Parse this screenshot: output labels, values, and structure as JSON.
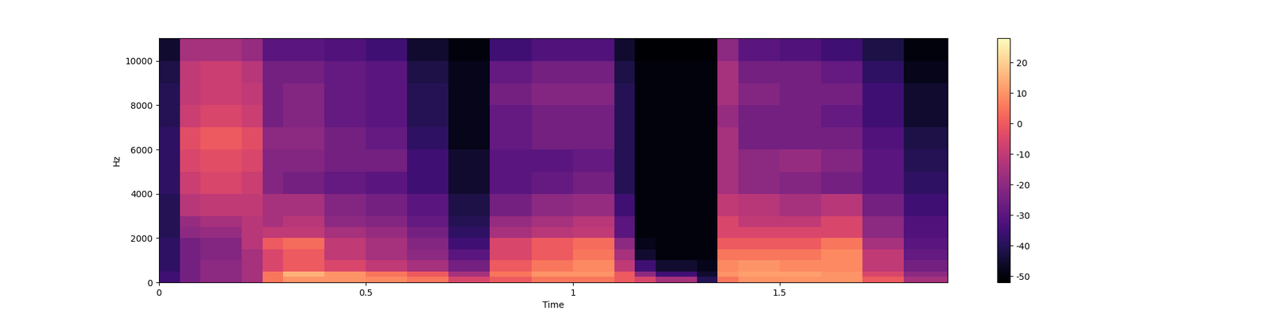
{
  "chart_data": {
    "type": "heatmap",
    "xlabel": "Time",
    "ylabel": "Hz",
    "xlim": [
      0,
      1.906
    ],
    "ylim": [
      0,
      11025
    ],
    "xticks": [
      0,
      0.5,
      1,
      1.5
    ],
    "yticks": [
      0,
      2000,
      4000,
      6000,
      8000,
      10000
    ],
    "x_edges": [
      0,
      0.05,
      0.1,
      0.2,
      0.25,
      0.3,
      0.4,
      0.5,
      0.6,
      0.7,
      0.8,
      0.9,
      1.0,
      1.1,
      1.15,
      1.2,
      1.3,
      1.35,
      1.4,
      1.5,
      1.6,
      1.7,
      1.8,
      1.906
    ],
    "y_edges": [
      0,
      250,
      500,
      1000,
      1500,
      2000,
      2500,
      3000,
      4000,
      5000,
      6000,
      7000,
      8000,
      9000,
      10000,
      11025
    ],
    "cells": [
      [
        -35,
        -25,
        -20,
        -15,
        5,
        10,
        10,
        8,
        5,
        -5,
        0,
        5,
        5,
        0,
        -5,
        -15,
        -40,
        5,
        10,
        10,
        10,
        0,
        -15
      ],
      [
        -35,
        -25,
        -20,
        -15,
        5,
        15,
        10,
        5,
        0,
        -15,
        5,
        10,
        10,
        0,
        -20,
        -35,
        -45,
        10,
        12,
        12,
        10,
        -5,
        -20
      ],
      [
        -38,
        -25,
        -20,
        -15,
        -5,
        0,
        -5,
        -10,
        -15,
        -25,
        0,
        5,
        8,
        -10,
        -35,
        -45,
        -48,
        8,
        10,
        8,
        8,
        -10,
        -25
      ],
      [
        -38,
        -25,
        -22,
        -15,
        -5,
        0,
        -10,
        -15,
        -20,
        -30,
        -5,
        0,
        5,
        -15,
        -45,
        -50,
        -50,
        5,
        5,
        5,
        8,
        -10,
        -28
      ],
      [
        -38,
        -25,
        -22,
        -12,
        0,
        3,
        -10,
        -15,
        -22,
        -35,
        -5,
        0,
        3,
        -20,
        -48,
        -50,
        -50,
        0,
        0,
        0,
        5,
        -15,
        -30
      ],
      [
        -40,
        -20,
        -18,
        -12,
        -10,
        -10,
        -15,
        -18,
        -25,
        -38,
        -15,
        -12,
        -10,
        -30,
        -50,
        -50,
        -50,
        -5,
        -5,
        -5,
        -5,
        -20,
        -32
      ],
      [
        -40,
        -18,
        -15,
        -12,
        -15,
        -12,
        -20,
        -22,
        -28,
        -40,
        -18,
        -15,
        -12,
        -30,
        -50,
        -50,
        -50,
        -5,
        -10,
        -10,
        -5,
        -20,
        -32
      ],
      [
        -40,
        -12,
        -10,
        -10,
        -15,
        -15,
        -22,
        -25,
        -30,
        -42,
        -25,
        -20,
        -18,
        -35,
        -50,
        -50,
        -50,
        -10,
        -12,
        -15,
        -12,
        -25,
        -35
      ],
      [
        -38,
        -8,
        -5,
        -8,
        -22,
        -25,
        -28,
        -30,
        -35,
        -45,
        -30,
        -28,
        -25,
        -40,
        -50,
        -50,
        -50,
        -15,
        -20,
        -22,
        -25,
        -30,
        -38
      ],
      [
        -38,
        -5,
        -3,
        -5,
        -22,
        -22,
        -25,
        -25,
        -35,
        -45,
        -30,
        -30,
        -28,
        -40,
        -50,
        -50,
        -50,
        -15,
        -20,
        -18,
        -22,
        -30,
        -40
      ],
      [
        -38,
        -3,
        0,
        -3,
        -20,
        -20,
        -25,
        -28,
        -38,
        -48,
        -28,
        -25,
        -25,
        -40,
        -50,
        -50,
        -50,
        -15,
        -25,
        -25,
        -25,
        -32,
        -42
      ],
      [
        -40,
        -8,
        -5,
        -8,
        -25,
        -22,
        -28,
        -30,
        -40,
        -48,
        -28,
        -25,
        -25,
        -40,
        -50,
        -50,
        -50,
        -18,
        -25,
        -25,
        -28,
        -35,
        -45
      ],
      [
        -40,
        -10,
        -8,
        -10,
        -25,
        -22,
        -28,
        -30,
        -40,
        -48,
        -25,
        -22,
        -22,
        -40,
        -50,
        -50,
        -50,
        -15,
        -22,
        -25,
        -25,
        -35,
        -45
      ],
      [
        -42,
        -10,
        -8,
        -12,
        -25,
        -25,
        -28,
        -30,
        -42,
        -48,
        -28,
        -25,
        -25,
        -42,
        -50,
        -50,
        -50,
        -15,
        -25,
        -25,
        -28,
        -38,
        -48
      ],
      [
        -45,
        -15,
        -15,
        -18,
        -30,
        -30,
        -32,
        -35,
        -45,
        -50,
        -35,
        -32,
        -32,
        -45,
        -52,
        -52,
        -52,
        -20,
        -30,
        -32,
        -35,
        -42,
        -50
      ]
    ],
    "colorbar_range": [
      -52,
      28
    ],
    "colorbar_ticks": [
      -50,
      -40,
      -30,
      -20,
      -10,
      0,
      10,
      20
    ]
  }
}
